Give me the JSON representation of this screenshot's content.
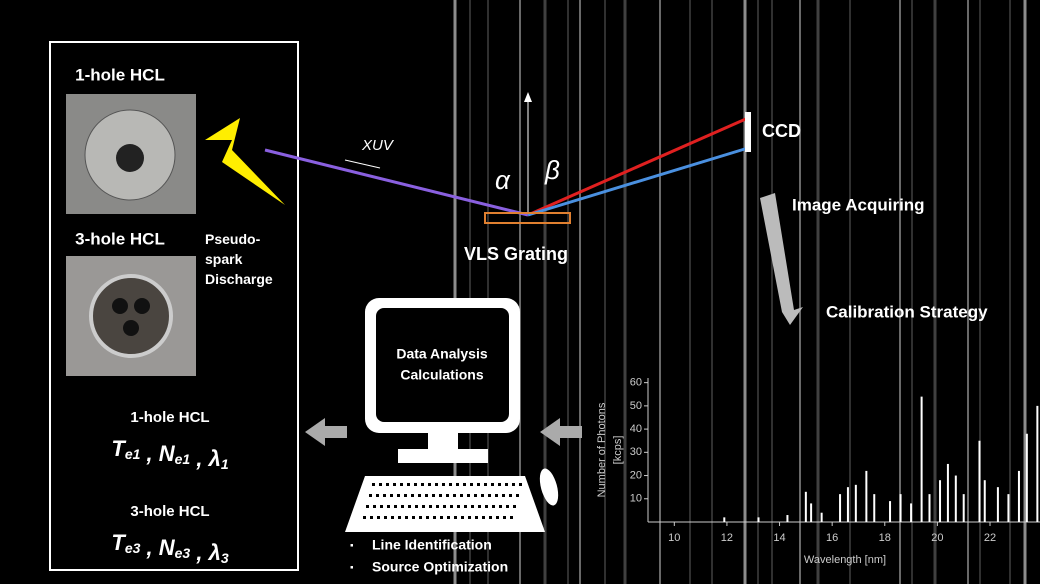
{
  "source_box": {
    "hcl1": "1-hole HCL",
    "hcl3": "3-hole HCL",
    "discharge": "Pseudo-spark Discharge",
    "result1": {
      "label": "1-hole HCL",
      "terms": [
        {
          "sym": "T",
          "sub": "e1"
        },
        {
          "sym": "N",
          "sub": "e1"
        },
        {
          "sym": "λ",
          "sub": "1"
        }
      ]
    },
    "result3": {
      "label": "3-hole HCL",
      "terms": [
        {
          "sym": "T",
          "sub": "e3"
        },
        {
          "sym": "N",
          "sub": "e3"
        },
        {
          "sym": "λ",
          "sub": "3"
        }
      ]
    },
    "separator": ","
  },
  "optics": {
    "beam": "XUV",
    "alpha": "α",
    "beta": "β",
    "grating": "VLS Grating",
    "detector": "CCD"
  },
  "steps": {
    "acquire": "Image Acquiring",
    "calibrate": "Calibration Strategy"
  },
  "computer": {
    "screen_text": "Data Analysis Calculations",
    "bullets": [
      "Line Identification",
      "Source Optimization"
    ]
  },
  "chart_data": {
    "type": "stick",
    "xlabel": "Wavelength [nm]",
    "ylabel": "Number of Photons [kcps]",
    "color": "#ffffff",
    "x": [
      11.9,
      13.2,
      14.3,
      15.0,
      15.2,
      15.6,
      16.3,
      16.6,
      16.9,
      17.3,
      17.6,
      18.2,
      18.6,
      19.0,
      19.4,
      19.7,
      20.1,
      20.4,
      20.7,
      21.0,
      21.6,
      21.8,
      22.3,
      22.7,
      23.1,
      23.4,
      23.8
    ],
    "values": [
      2,
      2,
      3,
      13,
      8,
      4,
      12,
      15,
      16,
      22,
      12,
      9,
      12,
      8,
      54,
      12,
      18,
      25,
      20,
      12,
      35,
      18,
      15,
      12,
      22,
      38,
      50
    ],
    "xlim": [
      9,
      23.9
    ],
    "ylim": [
      0,
      62
    ],
    "xticks": [
      10,
      12,
      14,
      16,
      18,
      20,
      22
    ],
    "yticks": [
      10,
      20,
      30,
      40,
      50,
      60
    ]
  }
}
